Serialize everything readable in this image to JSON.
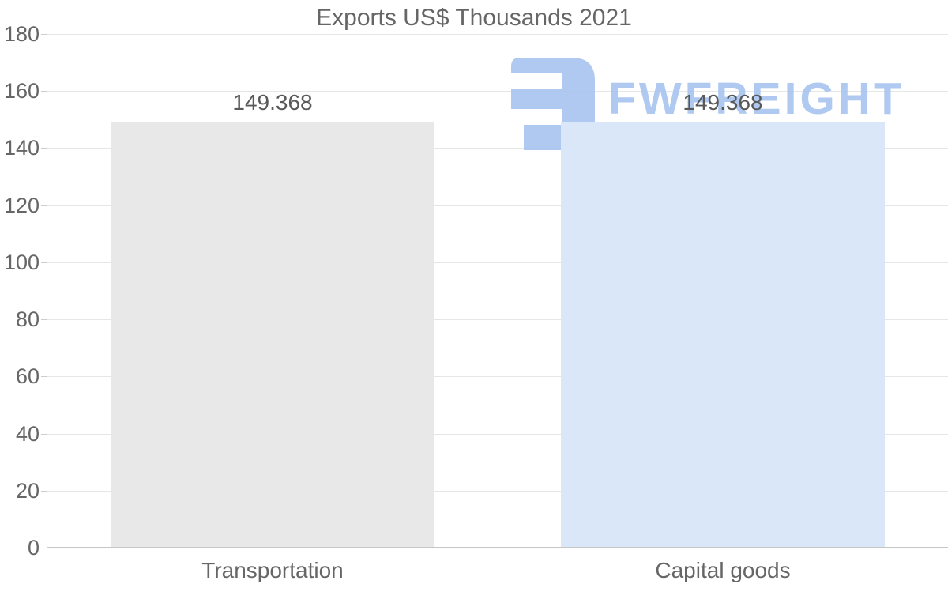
{
  "chart_data": {
    "type": "bar",
    "title": "Exports US$ Thousands 2021",
    "categories": [
      "Transportation",
      "Capital goods"
    ],
    "values": [
      149.368,
      149.368
    ],
    "data_labels": [
      "149.368",
      "149.368"
    ],
    "ylim": [
      0,
      180
    ],
    "yticks": [
      0,
      20,
      40,
      60,
      80,
      100,
      120,
      140,
      160,
      180
    ],
    "grid": true,
    "legend": false,
    "bar_colors": [
      "#e8e8e8",
      "#d9e7f8"
    ],
    "title_color": "#666666",
    "axis_label_color": "#666666",
    "value_label_color": "#595959",
    "grid_color": "#e6e6e6",
    "axis_line_color": "#cccccc",
    "baseline_color": "#c6c6c6"
  },
  "watermark": {
    "icon": "fwfreight-logo-icon",
    "text": "FWFREIGHT",
    "color": "#a7c4f0"
  }
}
